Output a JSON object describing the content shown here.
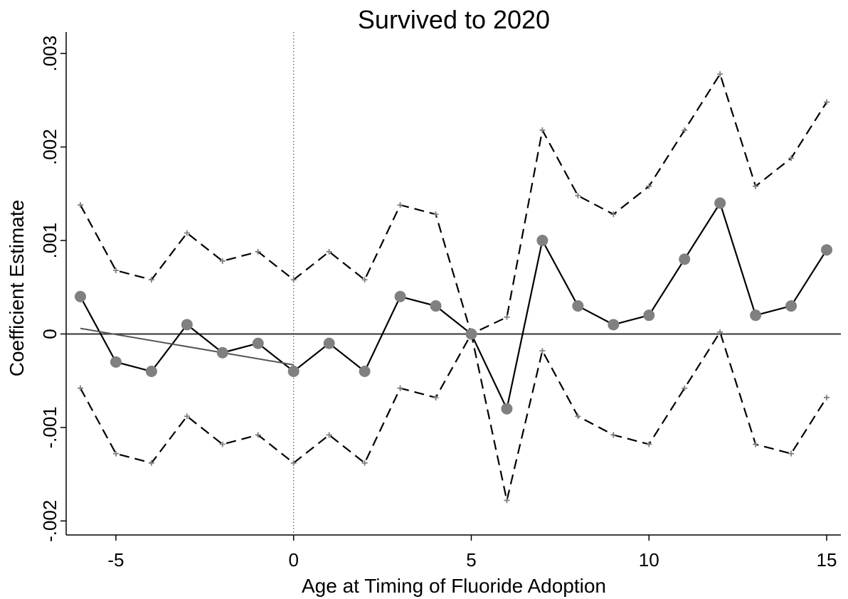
{
  "chart_data": {
    "type": "line",
    "title": "Survived to 2020",
    "xlabel": "Age at Timing of Fluoride Adoption",
    "ylabel": "Coefficient Estimate",
    "x": [
      -6,
      -5,
      -4,
      -3,
      -2,
      -1,
      0,
      1,
      2,
      3,
      4,
      5,
      6,
      7,
      8,
      9,
      10,
      11,
      12,
      13,
      14,
      15
    ],
    "series": [
      {
        "color": "#808080",
        "line_color": "#000000",
        "style": "solid",
        "marker": "circle",
        "values": [
          0.0004,
          -0.0003,
          -0.0004,
          0.0001,
          -0.0002,
          -0.0001,
          -0.0004,
          -0.0001,
          -0.0004,
          0.0004,
          0.0003,
          0,
          -0.0008,
          0.001,
          0.0003,
          0.0001,
          0.0002,
          0.0008,
          0.0014,
          0.0002,
          0.0003,
          0.0009
        ]
      },
      {
        "color": "#808080",
        "line_color": "#000000",
        "style": "dashed",
        "marker": "plus",
        "values": [
          0.00138,
          0.00068,
          0.00058,
          0.00108,
          0.00078,
          0.00088,
          0.00058,
          0.00088,
          0.00058,
          0.00138,
          0.00128,
          0,
          0.00018,
          0.00218,
          0.00148,
          0.00128,
          0.00158,
          0.00218,
          0.00278,
          0.00158,
          0.00188,
          0.00248
        ]
      },
      {
        "color": "#808080",
        "line_color": "#000000",
        "style": "dashed",
        "marker": "plus",
        "values": [
          -0.00058,
          -0.00128,
          -0.00138,
          -0.00088,
          -0.00118,
          -0.00108,
          -0.00138,
          -0.00108,
          -0.00138,
          -0.00058,
          -0.00068,
          0,
          -0.00178,
          -0.00018,
          -0.00088,
          -0.00108,
          -0.00118,
          -0.00058,
          2e-05,
          -0.00118,
          -0.00128,
          -0.00068
        ]
      }
    ],
    "trend": {
      "x": [
        -6,
        0
      ],
      "values": [
        6e-05,
        -0.00033
      ],
      "color": "#555555"
    },
    "hline": 0,
    "vline": 0,
    "xlim": [
      -6.4,
      15.4
    ],
    "ylim": [
      -0.00215,
      0.00323
    ],
    "xticks": [
      -5,
      0,
      5,
      10,
      15
    ],
    "yticks": [
      {
        "value": 0.003,
        "label": ".003"
      },
      {
        "value": 0.002,
        "label": ".002"
      },
      {
        "value": 0.001,
        "label": ".001"
      },
      0,
      {
        "value": -0.001,
        "label": "-.001"
      },
      {
        "value": -0.002,
        "label": "-.002"
      }
    ]
  }
}
